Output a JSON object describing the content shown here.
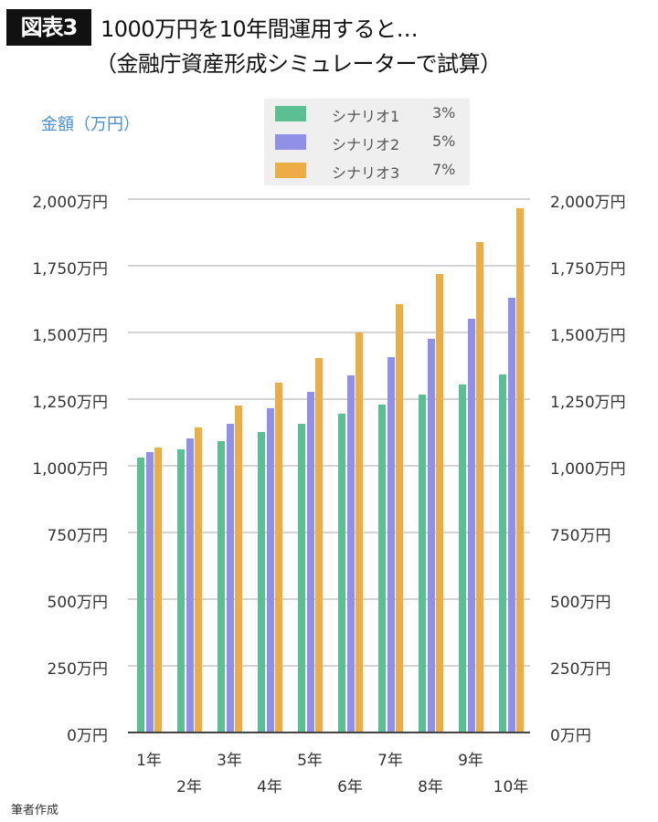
{
  "header": {
    "badge": "図表3",
    "title_line1": "1000万円を10年間運用すると…",
    "title_line2": "（金融庁資産形成シミュレーターで試算）"
  },
  "footer": {
    "source": "筆者作成"
  },
  "colors": {
    "scenario1": "#5bbf93",
    "scenario2": "#9090e6",
    "scenario3": "#eeac45",
    "ylabel": "#4a8fd4",
    "legend_bg": "#efefef"
  },
  "chart_data": {
    "type": "bar",
    "title": "1000万円を10年間運用すると…（金融庁資産形成シミュレーターで試算）",
    "xlabel": "",
    "ylabel": "金額（万円）",
    "ylim": [
      0,
      2000
    ],
    "yticks": [
      0,
      250,
      500,
      750,
      1000,
      1250,
      1500,
      1750,
      2000
    ],
    "ytick_labels": [
      "0万円",
      "250万円",
      "500万円",
      "750万円",
      "1,000万円",
      "1,250万円",
      "1,500万円",
      "1,750万円",
      "2,000万円"
    ],
    "categories": [
      "1年",
      "2年",
      "3年",
      "4年",
      "5年",
      "6年",
      "7年",
      "8年",
      "9年",
      "10年"
    ],
    "series": [
      {
        "name": "シナリオ1",
        "rate": "3%",
        "color": "#5bbf93",
        "values": [
          1030,
          1061,
          1093,
          1126,
          1159,
          1194,
          1230,
          1267,
          1305,
          1344
        ]
      },
      {
        "name": "シナリオ2",
        "rate": "5%",
        "color": "#9090e6",
        "values": [
          1050,
          1103,
          1158,
          1216,
          1276,
          1340,
          1407,
          1477,
          1551,
          1629
        ]
      },
      {
        "name": "シナリオ3",
        "rate": "7%",
        "color": "#eeac45",
        "values": [
          1070,
          1145,
          1225,
          1311,
          1403,
          1501,
          1606,
          1718,
          1838,
          1967
        ]
      }
    ],
    "grid": true,
    "legend_position": "top-center",
    "dual_y_axis_labels": true
  }
}
